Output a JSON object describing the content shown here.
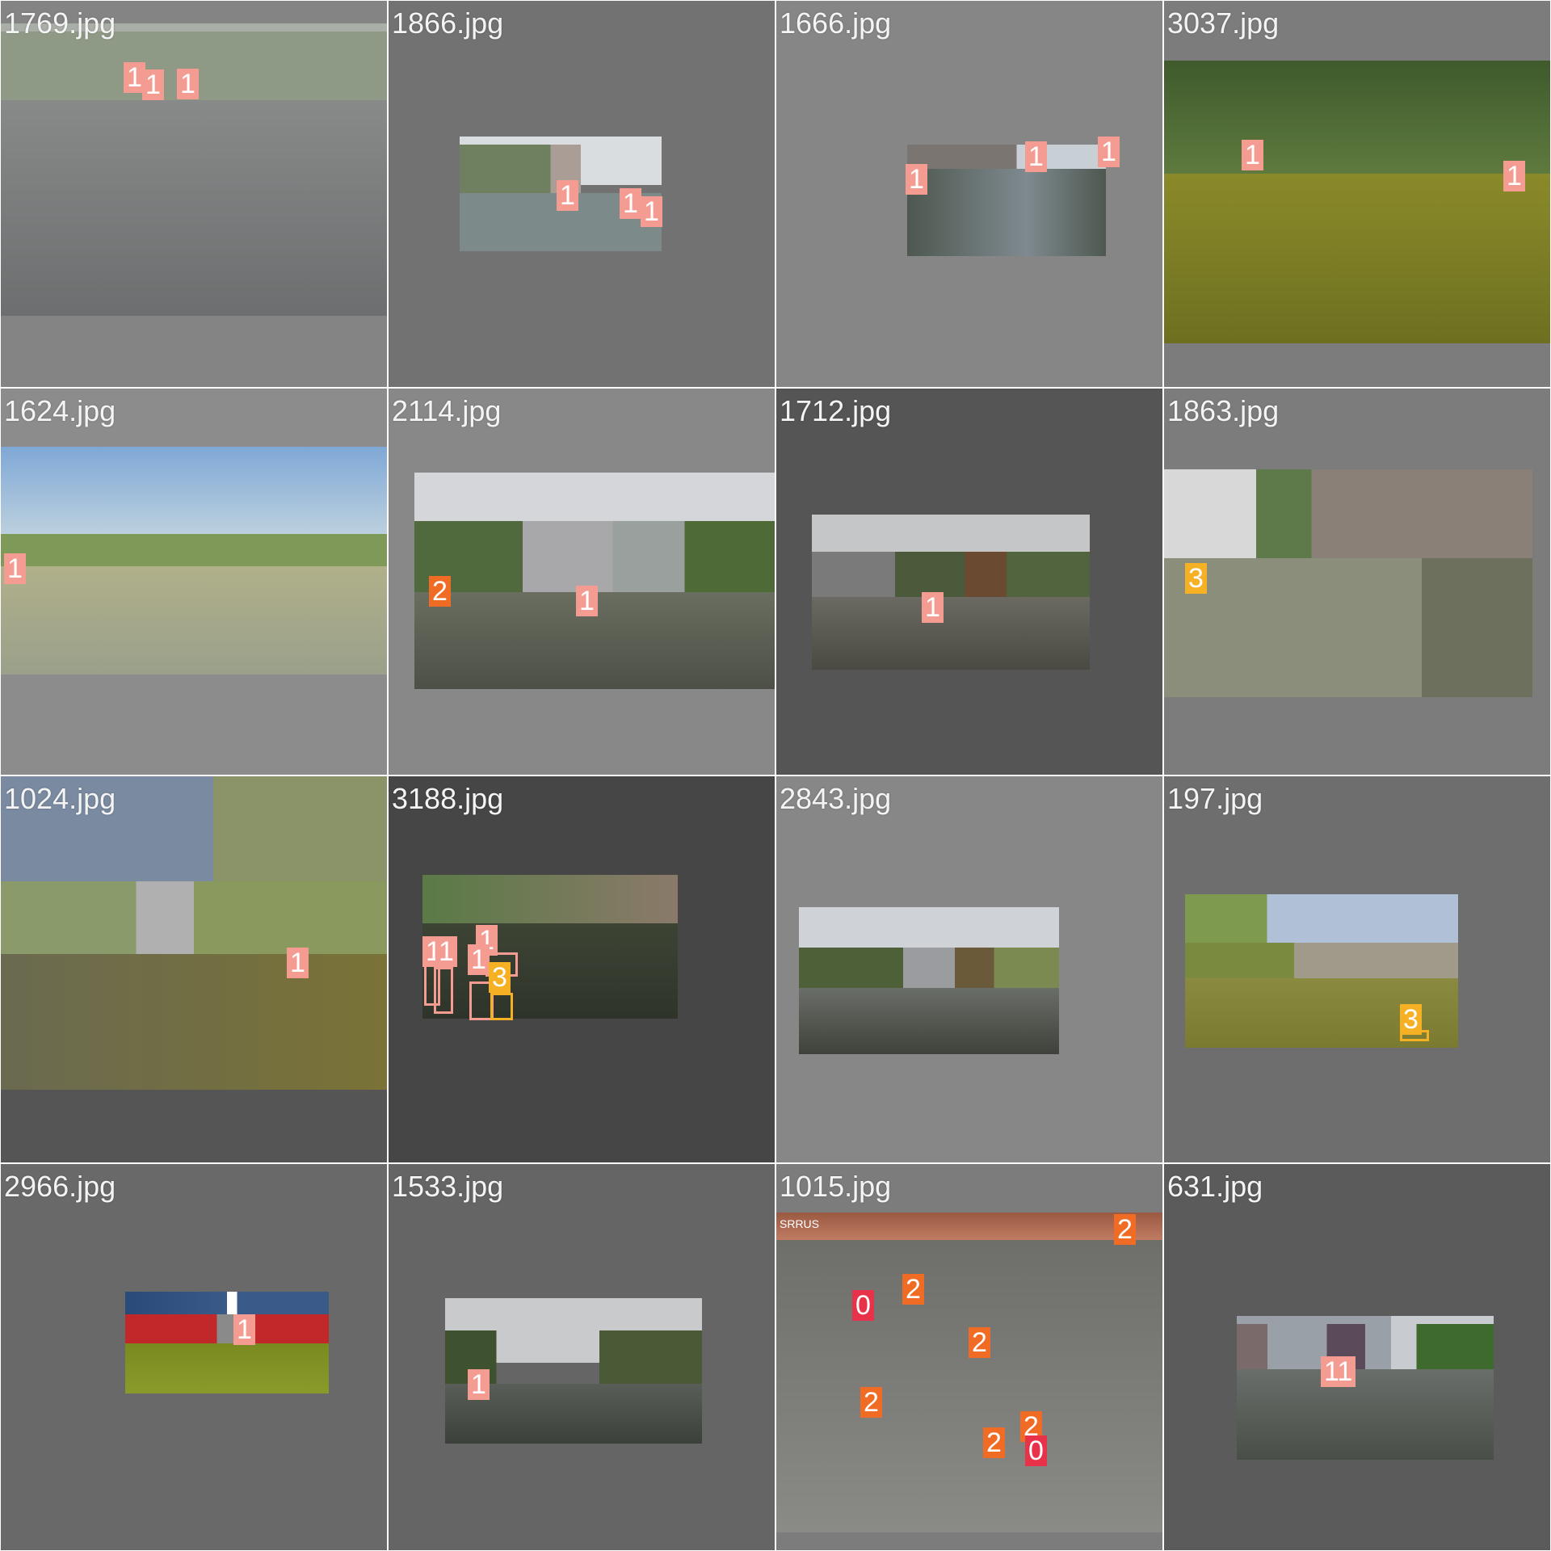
{
  "tiles": [
    {
      "filename": "1769.jpg",
      "background": "#848484",
      "labels": [
        "1",
        "1",
        "1"
      ]
    },
    {
      "filename": "1866.jpg",
      "background": "#727272",
      "labels": [
        "1",
        "1",
        "1"
      ]
    },
    {
      "filename": "1666.jpg",
      "background": "#868686",
      "labels": [
        "1",
        "1",
        "1"
      ]
    },
    {
      "filename": "3037.jpg",
      "background": "#7c7c7c",
      "labels": [
        "1",
        "1"
      ]
    },
    {
      "filename": "1624.jpg",
      "background": "#8c8c8c",
      "labels": [
        "1"
      ]
    },
    {
      "filename": "2114.jpg",
      "background": "#888888",
      "labels": [
        "2",
        "1"
      ]
    },
    {
      "filename": "1712.jpg",
      "background": "#555555",
      "labels": [
        "1"
      ]
    },
    {
      "filename": "1863.jpg",
      "background": "#7c7c7c",
      "labels": [
        "3"
      ]
    },
    {
      "filename": "1024.jpg",
      "background": "#555555",
      "labels": [
        "1"
      ]
    },
    {
      "filename": "3188.jpg",
      "background": "#464646",
      "labels": [
        "1",
        "1",
        "1",
        "1",
        "3"
      ]
    },
    {
      "filename": "2843.jpg",
      "background": "#878787",
      "labels": []
    },
    {
      "filename": "197.jpg",
      "background": "#6e6e6e",
      "labels": [
        "3"
      ]
    },
    {
      "filename": "2966.jpg",
      "background": "#696969",
      "labels": [
        "1"
      ]
    },
    {
      "filename": "1533.jpg",
      "background": "#656565",
      "labels": [
        "1"
      ]
    },
    {
      "filename": "1015.jpg",
      "background": "#7c7c7c",
      "labels": [
        "2",
        "2",
        "0",
        "2",
        "2",
        "2",
        "0",
        "2"
      ]
    },
    {
      "filename": "631.jpg",
      "background": "#5b5b5b",
      "labels": [
        "11"
      ]
    }
  ],
  "class_colors": {
    "0": "#e8324a",
    "1": "#f59c92",
    "2": "#f06b23",
    "3": "#f6b024"
  },
  "photo_watermark": "SRRUS"
}
